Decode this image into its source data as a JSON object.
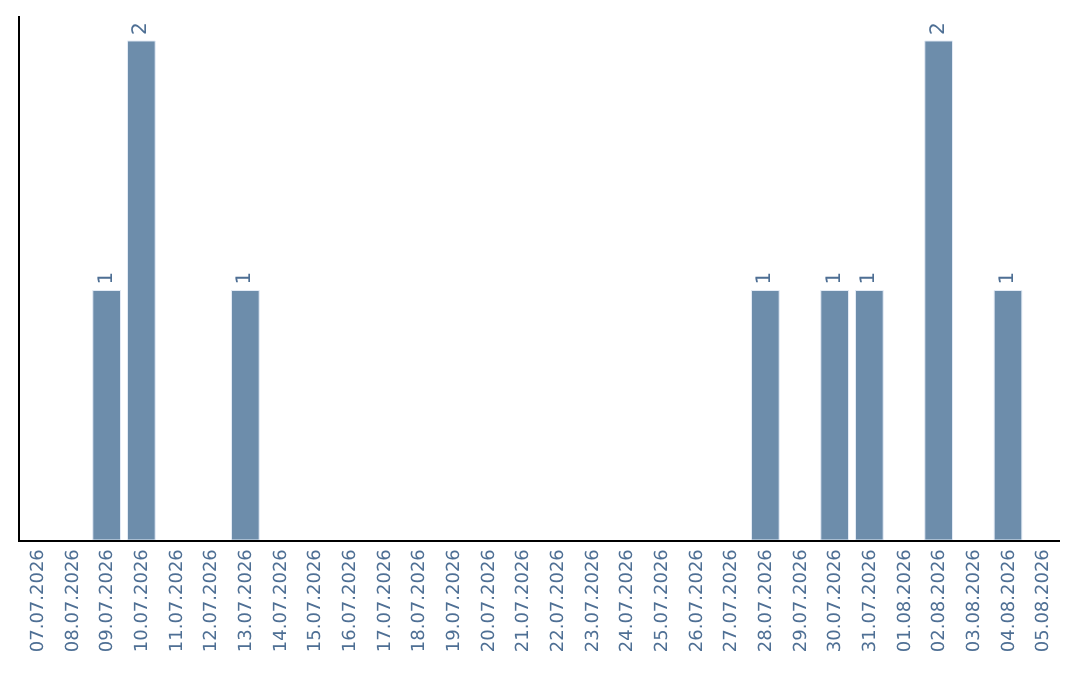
{
  "chart_data": {
    "type": "bar",
    "categories": [
      "07.07.2026",
      "08.07.2026",
      "09.07.2026",
      "10.07.2026",
      "11.07.2026",
      "12.07.2026",
      "13.07.2026",
      "14.07.2026",
      "15.07.2026",
      "16.07.2026",
      "17.07.2026",
      "18.07.2026",
      "19.07.2026",
      "20.07.2026",
      "21.07.2026",
      "22.07.2026",
      "23.07.2026",
      "24.07.2026",
      "25.07.2026",
      "26.07.2026",
      "27.07.2026",
      "28.07.2026",
      "29.07.2026",
      "30.07.2026",
      "31.07.2026",
      "01.08.2026",
      "02.08.2026",
      "03.08.2026",
      "04.08.2026",
      "05.08.2026"
    ],
    "values": [
      null,
      null,
      1,
      2,
      null,
      null,
      1,
      null,
      null,
      null,
      null,
      null,
      null,
      null,
      null,
      null,
      null,
      null,
      null,
      null,
      null,
      1,
      null,
      1,
      1,
      null,
      2,
      null,
      1,
      null
    ],
    "value_labels": [
      null,
      null,
      "1",
      "2",
      null,
      null,
      "1",
      null,
      null,
      null,
      null,
      null,
      null,
      null,
      null,
      null,
      null,
      null,
      null,
      null,
      null,
      "1",
      null,
      "1",
      "1",
      null,
      "2",
      null,
      "1",
      null
    ],
    "color": "#6d8dab",
    "ylim": [
      0,
      2.1
    ],
    "tick_labels": "x"
  }
}
